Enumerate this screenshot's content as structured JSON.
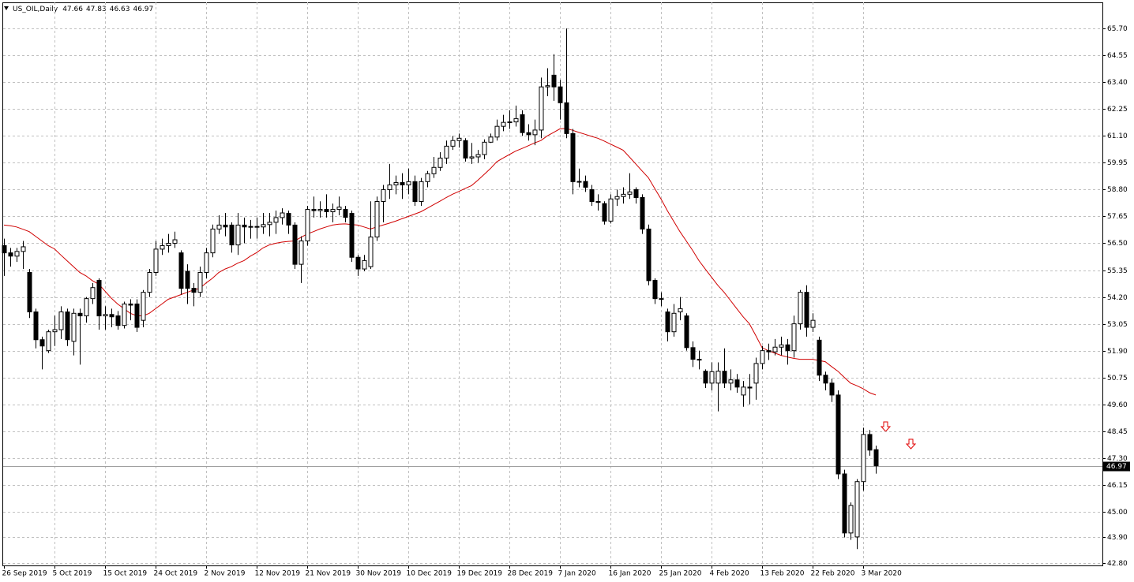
{
  "chart_data": {
    "type": "candlestick",
    "title": "US_OIL,Daily",
    "categories": [
      "26 Sep 2019",
      null,
      null,
      null,
      null,
      null,
      null,
      null,
      "5 Oct 2019",
      null,
      null,
      null,
      null,
      null,
      null,
      null,
      "15 Oct 2019",
      null,
      null,
      null,
      null,
      null,
      null,
      null,
      "24 Oct 2019",
      null,
      null,
      null,
      null,
      null,
      null,
      null,
      "2 Nov 2019",
      null,
      null,
      null,
      null,
      null,
      null,
      null,
      "12 Nov 2019",
      null,
      null,
      null,
      null,
      null,
      null,
      null,
      "21 Nov 2019",
      null,
      null,
      null,
      null,
      null,
      null,
      null,
      "30 Nov 2019",
      null,
      null,
      null,
      null,
      null,
      null,
      null,
      "10 Dec 2019",
      null,
      null,
      null,
      null,
      null,
      null,
      null,
      "19 Dec 2019",
      null,
      null,
      null,
      null,
      null,
      null,
      null,
      "28 Dec 2019",
      null,
      null,
      null,
      null,
      null,
      null,
      null,
      "7 Jan 2020",
      null,
      null,
      null,
      null,
      null,
      null,
      null,
      "16 Jan 2020",
      null,
      null,
      null,
      null,
      null,
      null,
      null,
      "25 Jan 2020",
      null,
      null,
      null,
      null,
      null,
      null,
      null,
      "4 Feb 2020",
      null,
      null,
      null,
      null,
      null,
      null,
      null,
      "13 Feb 2020",
      null,
      null,
      null,
      null,
      null,
      null,
      null,
      "22 Feb 2020",
      null,
      null,
      null,
      null,
      null,
      null,
      null,
      "3 Mar 2020",
      null,
      null
    ],
    "open": [
      56.4,
      56.09,
      55.95,
      56.15,
      55.25,
      53.56,
      52.37,
      51.9,
      52.71,
      52.8,
      53.56,
      52.3,
      53.5,
      53.39,
      54.13,
      54.91,
      53.39,
      53.45,
      53.39,
      52.98,
      53.9,
      53.9,
      53.2,
      54.4,
      55.25,
      56.25,
      56.4,
      56.5,
      56.09,
      55.3,
      54.57,
      54.4,
      55.25,
      56.09,
      57.11,
      57.28,
      57.28,
      56.43,
      57.28,
      57.2,
      57.22,
      57.2,
      57.3,
      57.4,
      57.6,
      57.78,
      57.28,
      55.6,
      56.6,
      57.95,
      57.9,
      57.95,
      57.85,
      57.95,
      57.95,
      57.78,
      55.9,
      55.4,
      55.5,
      56.77,
      58.29,
      58.8,
      59.0,
      59.1,
      59.0,
      59.14,
      58.29,
      59.14,
      59.48,
      59.75,
      60.15,
      60.66,
      60.9,
      60.9,
      60.15,
      60.2,
      60.3,
      60.83,
      61.05,
      61.51,
      61.68,
      61.7,
      62.01,
      61.24,
      61.15,
      61.35,
      63.2,
      63.7,
      63.2,
      62.52,
      61.2,
      59.14,
      59.15,
      58.8,
      58.29,
      58.2,
      57.45,
      58.4,
      58.5,
      58.6,
      58.8,
      58.46,
      57.11,
      54.91,
      54.13,
      53.56,
      52.71,
      53.56,
      53.39,
      52.03,
      51.53,
      51.02,
      50.51,
      50.51,
      51.02,
      50.51,
      50.65,
      50.0,
      50.34,
      50.51,
      51.35,
      51.9,
      51.85,
      52.05,
      52.15,
      51.9,
      53.05,
      54.4,
      52.9,
      52.35,
      50.85,
      50.51,
      50.0,
      46.62,
      44.09,
      43.92,
      46.29,
      48.31,
      47.66
    ],
    "high": [
      56.7,
      56.3,
      56.3,
      56.6,
      55.4,
      53.7,
      52.5,
      52.8,
      53.4,
      53.8,
      53.7,
      53.7,
      53.7,
      54.2,
      54.8,
      55.0,
      53.8,
      53.7,
      53.6,
      54.0,
      54.1,
      54.1,
      54.5,
      55.4,
      56.6,
      56.7,
      56.9,
      57.0,
      56.2,
      55.6,
      54.8,
      55.5,
      56.3,
      57.3,
      57.7,
      57.8,
      57.4,
      57.8,
      57.6,
      57.5,
      57.6,
      57.8,
      57.8,
      57.9,
      58.0,
      57.9,
      57.4,
      56.8,
      58.1,
      58.5,
      58.3,
      58.6,
      58.2,
      58.5,
      58.1,
      57.9,
      56.0,
      56.0,
      58.3,
      58.5,
      59.0,
      59.9,
      59.4,
      59.5,
      59.7,
      59.4,
      59.3,
      59.6,
      60.2,
      60.4,
      60.9,
      61.1,
      61.2,
      61.0,
      60.8,
      60.5,
      60.95,
      61.2,
      61.8,
      62.0,
      62.2,
      62.4,
      62.2,
      61.6,
      61.8,
      63.6,
      64.0,
      64.6,
      63.5,
      65.7,
      61.4,
      59.7,
      59.4,
      59.0,
      58.6,
      58.3,
      58.6,
      58.8,
      58.9,
      59.5,
      58.9,
      58.6,
      57.3,
      55.0,
      54.4,
      53.7,
      53.9,
      54.2,
      53.5,
      52.3,
      51.9,
      51.1,
      51.4,
      51.4,
      52.0,
      51.1,
      50.9,
      50.6,
      50.9,
      51.6,
      52.1,
      52.2,
      52.4,
      52.5,
      52.4,
      53.4,
      54.5,
      54.7,
      53.5,
      52.5,
      51.0,
      50.7,
      50.2,
      46.8,
      45.4,
      46.4,
      48.6,
      48.5,
      47.83
    ],
    "low": [
      55.1,
      55.5,
      55.7,
      55.4,
      53.3,
      52.0,
      51.1,
      51.8,
      52.1,
      52.4,
      52.1,
      51.7,
      51.3,
      53.1,
      53.9,
      52.8,
      52.8,
      52.9,
      52.8,
      52.85,
      53.2,
      52.7,
      52.9,
      54.2,
      55.1,
      56.0,
      56.1,
      56.3,
      54.3,
      53.9,
      53.8,
      54.2,
      55.0,
      55.9,
      56.9,
      56.8,
      56.1,
      56.0,
      56.5,
      56.7,
      56.7,
      56.9,
      56.8,
      56.9,
      57.3,
      56.9,
      55.4,
      54.8,
      56.4,
      57.6,
      57.6,
      57.6,
      57.4,
      57.7,
      57.4,
      55.7,
      55.1,
      55.3,
      55.4,
      56.6,
      57.4,
      58.4,
      58.6,
      58.4,
      58.6,
      58.1,
      58.1,
      58.9,
      59.3,
      59.6,
      59.9,
      60.5,
      60.6,
      60.0,
      59.9,
      59.95,
      60.1,
      60.8,
      60.9,
      61.3,
      61.4,
      61.5,
      61.1,
      60.9,
      60.7,
      61.0,
      62.8,
      62.6,
      61.8,
      61.0,
      58.6,
      58.9,
      58.7,
      58.1,
      57.9,
      57.3,
      57.35,
      58.1,
      58.2,
      58.4,
      58.2,
      56.9,
      54.7,
      53.9,
      53.8,
      52.3,
      52.5,
      53.2,
      51.9,
      51.2,
      51.1,
      50.3,
      50.2,
      49.3,
      50.3,
      50.2,
      50.1,
      49.5,
      49.6,
      49.8,
      51.1,
      51.5,
      51.7,
      51.7,
      51.3,
      51.6,
      52.8,
      52.5,
      52.7,
      50.6,
      50.2,
      49.7,
      46.4,
      43.9,
      43.8,
      43.4,
      45.9,
      47.4,
      46.63
    ],
    "close": [
      56.09,
      55.95,
      56.15,
      56.35,
      53.56,
      52.37,
      52.1,
      52.71,
      52.8,
      53.56,
      52.37,
      53.5,
      53.39,
      54.13,
      54.6,
      53.39,
      53.45,
      53.35,
      52.98,
      53.9,
      53.85,
      52.9,
      54.4,
      55.25,
      56.25,
      56.4,
      56.5,
      56.65,
      54.57,
      54.57,
      54.4,
      55.25,
      56.09,
      57.11,
      57.28,
      57.2,
      56.43,
      57.28,
      57.2,
      57.22,
      57.2,
      57.3,
      57.4,
      57.6,
      57.8,
      57.28,
      55.6,
      56.6,
      57.95,
      57.9,
      57.95,
      57.85,
      57.95,
      58.05,
      57.61,
      55.9,
      55.4,
      55.76,
      56.77,
      58.29,
      58.8,
      59.0,
      59.1,
      59.0,
      59.14,
      58.29,
      59.14,
      59.48,
      59.75,
      60.15,
      60.66,
      60.9,
      61.0,
      60.15,
      60.2,
      60.3,
      60.83,
      61.05,
      61.51,
      61.68,
      61.7,
      61.84,
      61.24,
      61.15,
      61.35,
      63.2,
      63.25,
      63.2,
      62.52,
      61.2,
      59.14,
      59.15,
      58.9,
      58.29,
      58.25,
      57.45,
      58.4,
      58.5,
      58.6,
      58.7,
      58.46,
      57.11,
      54.9,
      54.13,
      54.1,
      52.71,
      53.5,
      53.7,
      52.03,
      51.53,
      51.5,
      50.51,
      51.0,
      51.02,
      50.51,
      50.65,
      50.34,
      50.34,
      50.3,
      51.35,
      51.9,
      51.85,
      52.05,
      52.15,
      51.9,
      53.05,
      54.4,
      52.9,
      53.2,
      50.85,
      50.51,
      50.0,
      46.62,
      44.09,
      45.27,
      46.29,
      48.31,
      47.64,
      46.97
    ],
    "series": [
      {
        "type": "line",
        "color": "#d00000",
        "values": [
          57.28,
          57.25,
          57.2,
          57.1,
          57.0,
          56.8,
          56.6,
          56.4,
          56.26,
          56.0,
          55.75,
          55.5,
          55.25,
          55.1,
          54.9,
          54.75,
          54.45,
          54.15,
          53.9,
          53.7,
          53.5,
          53.4,
          53.39,
          53.5,
          53.7,
          53.9,
          54.1,
          54.2,
          54.3,
          54.4,
          54.5,
          54.57,
          54.8,
          55.0,
          55.25,
          55.4,
          55.5,
          55.65,
          55.76,
          55.95,
          56.1,
          56.3,
          56.43,
          56.5,
          56.55,
          56.58,
          56.6,
          56.75,
          56.9,
          57.0,
          57.11,
          57.2,
          57.28,
          57.32,
          57.33,
          57.3,
          57.28,
          57.2,
          57.11,
          57.2,
          57.28,
          57.36,
          57.45,
          57.55,
          57.65,
          57.75,
          57.85,
          58.0,
          58.15,
          58.3,
          58.46,
          58.6,
          58.72,
          58.85,
          58.97,
          59.2,
          59.45,
          59.7,
          59.99,
          60.15,
          60.3,
          60.45,
          60.56,
          60.68,
          60.8,
          60.9,
          61.1,
          61.25,
          61.4,
          61.42,
          61.34,
          61.25,
          61.17,
          61.08,
          61.0,
          60.88,
          60.75,
          60.62,
          60.49,
          60.2,
          59.9,
          59.6,
          59.31,
          58.85,
          58.4,
          57.9,
          57.45,
          57.0,
          56.6,
          56.2,
          55.76,
          55.4,
          55.05,
          54.7,
          54.4,
          54.05,
          53.7,
          53.35,
          53.05,
          52.55,
          52.03,
          51.9,
          51.8,
          51.7,
          51.63,
          51.57,
          51.53,
          51.53,
          51.53,
          51.48,
          51.43,
          51.22,
          51.02,
          50.76,
          50.51,
          50.4,
          50.27,
          50.1,
          50.0
        ]
      }
    ],
    "up_color": "#ffffff",
    "down_color": "#000000",
    "ylim": [
      42.7,
      66.82
    ],
    "yticks": [
      {
        "value": 65.7,
        "label": "65.70"
      },
      64.55,
      {
        "value": 63.4,
        "label": "63.40"
      },
      62.25,
      {
        "value": 61.1,
        "label": "61.10"
      },
      59.95,
      {
        "value": 58.8,
        "label": "58.80"
      },
      57.65,
      {
        "value": 56.5,
        "label": "56.50"
      },
      55.35,
      {
        "value": 54.2,
        "label": "54.20"
      },
      53.05,
      {
        "value": 51.9,
        "label": "51.90"
      },
      50.75,
      {
        "value": 49.6,
        "label": "49.60"
      },
      48.45,
      {
        "value": 47.3,
        "label": "47.30"
      },
      46.15,
      {
        "value": 45,
        "label": "45.00"
      },
      {
        "value": 43.9,
        "label": "43.90"
      },
      {
        "value": 42.8,
        "label": "42.80"
      }
    ],
    "grid": true
  }
}
